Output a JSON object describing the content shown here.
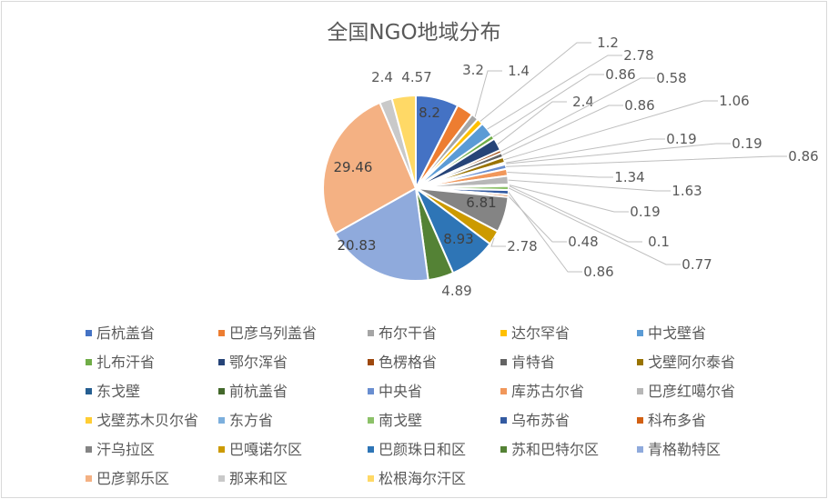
{
  "chart_data": {
    "type": "pie",
    "title": "全国NGO地域分布",
    "slices": [
      {
        "name": "后杭盖省",
        "value": 8.2,
        "color": "#4472c4"
      },
      {
        "name": "巴彦乌列盖省",
        "value": 3.2,
        "color": "#ed7d31"
      },
      {
        "name": "布尔干省",
        "value": 1.4,
        "color": "#a5a5a5"
      },
      {
        "name": "达尔罕省",
        "value": 1.2,
        "color": "#ffc000"
      },
      {
        "name": "中戈壁省",
        "value": 2.78,
        "color": "#5b9bd5"
      },
      {
        "name": "扎布汗省",
        "value": 0.86,
        "color": "#70ad47"
      },
      {
        "name": "鄂尔浑省",
        "value": 2.4,
        "color": "#264478"
      },
      {
        "name": "色楞格省",
        "value": 0.58,
        "color": "#9e480e"
      },
      {
        "name": "肯特省",
        "value": 0.86,
        "color": "#636363"
      },
      {
        "name": "戈壁阿尔泰省",
        "value": 1.06,
        "color": "#997300"
      },
      {
        "name": "东戈壁",
        "value": 0.19,
        "color": "#255e91"
      },
      {
        "name": "前杭盖省",
        "value": 0.19,
        "color": "#43682b"
      },
      {
        "name": "中央省",
        "value": 0.86,
        "color": "#698ed0"
      },
      {
        "name": "库苏古尔省",
        "value": 1.34,
        "color": "#f1975a"
      },
      {
        "name": "巴彦红噶尔省",
        "value": 1.63,
        "color": "#b7b7b7"
      },
      {
        "name": "戈壁苏木贝尔省",
        "value": 0.19,
        "color": "#ffcd33"
      },
      {
        "name": "东方省",
        "value": 0.1,
        "color": "#7cafdd"
      },
      {
        "name": "南戈壁",
        "value": 0.77,
        "color": "#8cc168"
      },
      {
        "name": "乌布苏省",
        "value": 0.86,
        "color": "#335aa1"
      },
      {
        "name": "科布多省",
        "value": 0.48,
        "color": "#d26012"
      },
      {
        "name": "汗乌拉区",
        "value": 6.81,
        "color": "#848484"
      },
      {
        "name": "巴嘎诺尔区",
        "value": 2.78,
        "color": "#cc9a00"
      },
      {
        "name": "巴颜珠日和区",
        "value": 8.93,
        "color": "#2e75b6"
      },
      {
        "name": "苏和巴特尔区",
        "value": 4.89,
        "color": "#548235"
      },
      {
        "name": "青格勒特区",
        "value": 20.83,
        "color": "#8faadc"
      },
      {
        "name": "巴彦郭乐区",
        "value": 29.46,
        "color": "#f4b183"
      },
      {
        "name": "那来和区",
        "value": 2.4,
        "color": "#c9c9c9"
      },
      {
        "name": "松根海尔汗区",
        "value": 4.57,
        "color": "#ffd966"
      }
    ],
    "data_labels": [
      "8.2",
      "3.2",
      "1.4",
      "1.2",
      "2.78",
      "0.86",
      "2.4",
      "0.58",
      "0.86",
      "1.06",
      "0.19",
      "0.19",
      "0.86",
      "1.34",
      "1.63",
      "0.19",
      "0.1",
      "0.77",
      "0.86",
      "0.48",
      "6.81",
      "2.78",
      "8.93",
      "4.89",
      "20.83",
      "29.46",
      "2.4",
      "4.57"
    ],
    "legend_position": "bottom",
    "label_color": "#595959",
    "leader_line_color": "#bfbfbf"
  }
}
